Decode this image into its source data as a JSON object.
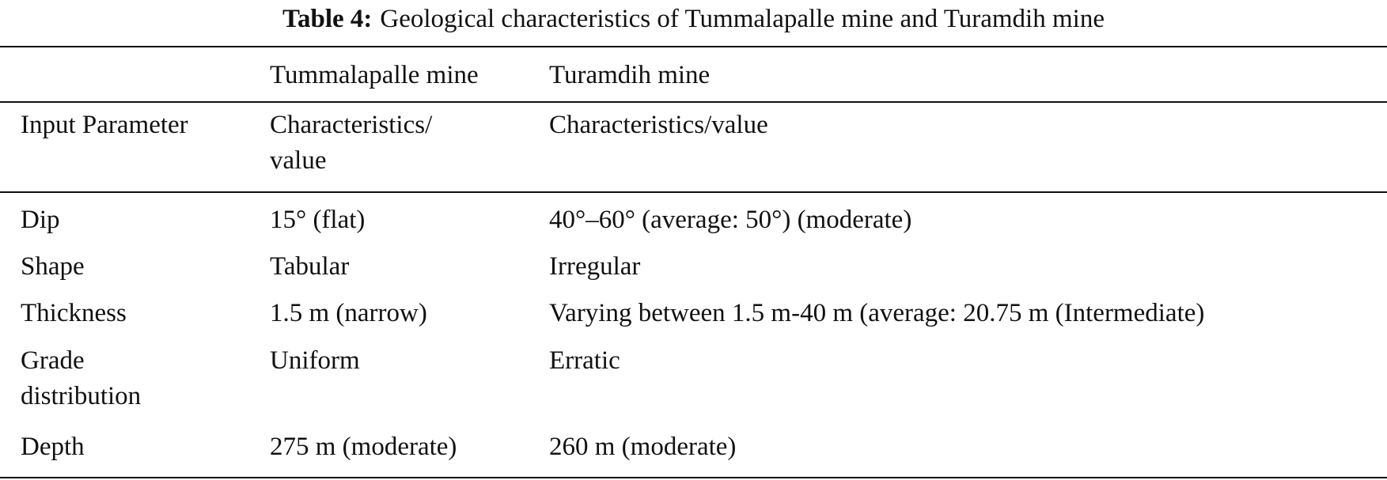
{
  "caption": {
    "label": "Table 4:",
    "title": "Geological characteristics of Tummalapalle mine and Turamdih mine"
  },
  "header": {
    "group_row": [
      "",
      "Tummalapalle mine",
      "Turamdih mine"
    ],
    "column_row": [
      "Input Parameter",
      "Characteristics/ value",
      "Characteristics/value"
    ]
  },
  "rows": [
    [
      "Dip",
      "15° (flat)",
      "40°–60° (average: 50°) (moderate)"
    ],
    [
      "Shape",
      "Tabular",
      "Irregular"
    ],
    [
      "Thickness",
      "1.5 m (narrow)",
      "Varying between 1.5 m-40 m (average: 20.75 m (Intermediate)"
    ],
    [
      "Grade distribution",
      "Uniform",
      "Erratic"
    ],
    [
      "Depth",
      "275 m (moderate)",
      "260 m (moderate)"
    ]
  ]
}
